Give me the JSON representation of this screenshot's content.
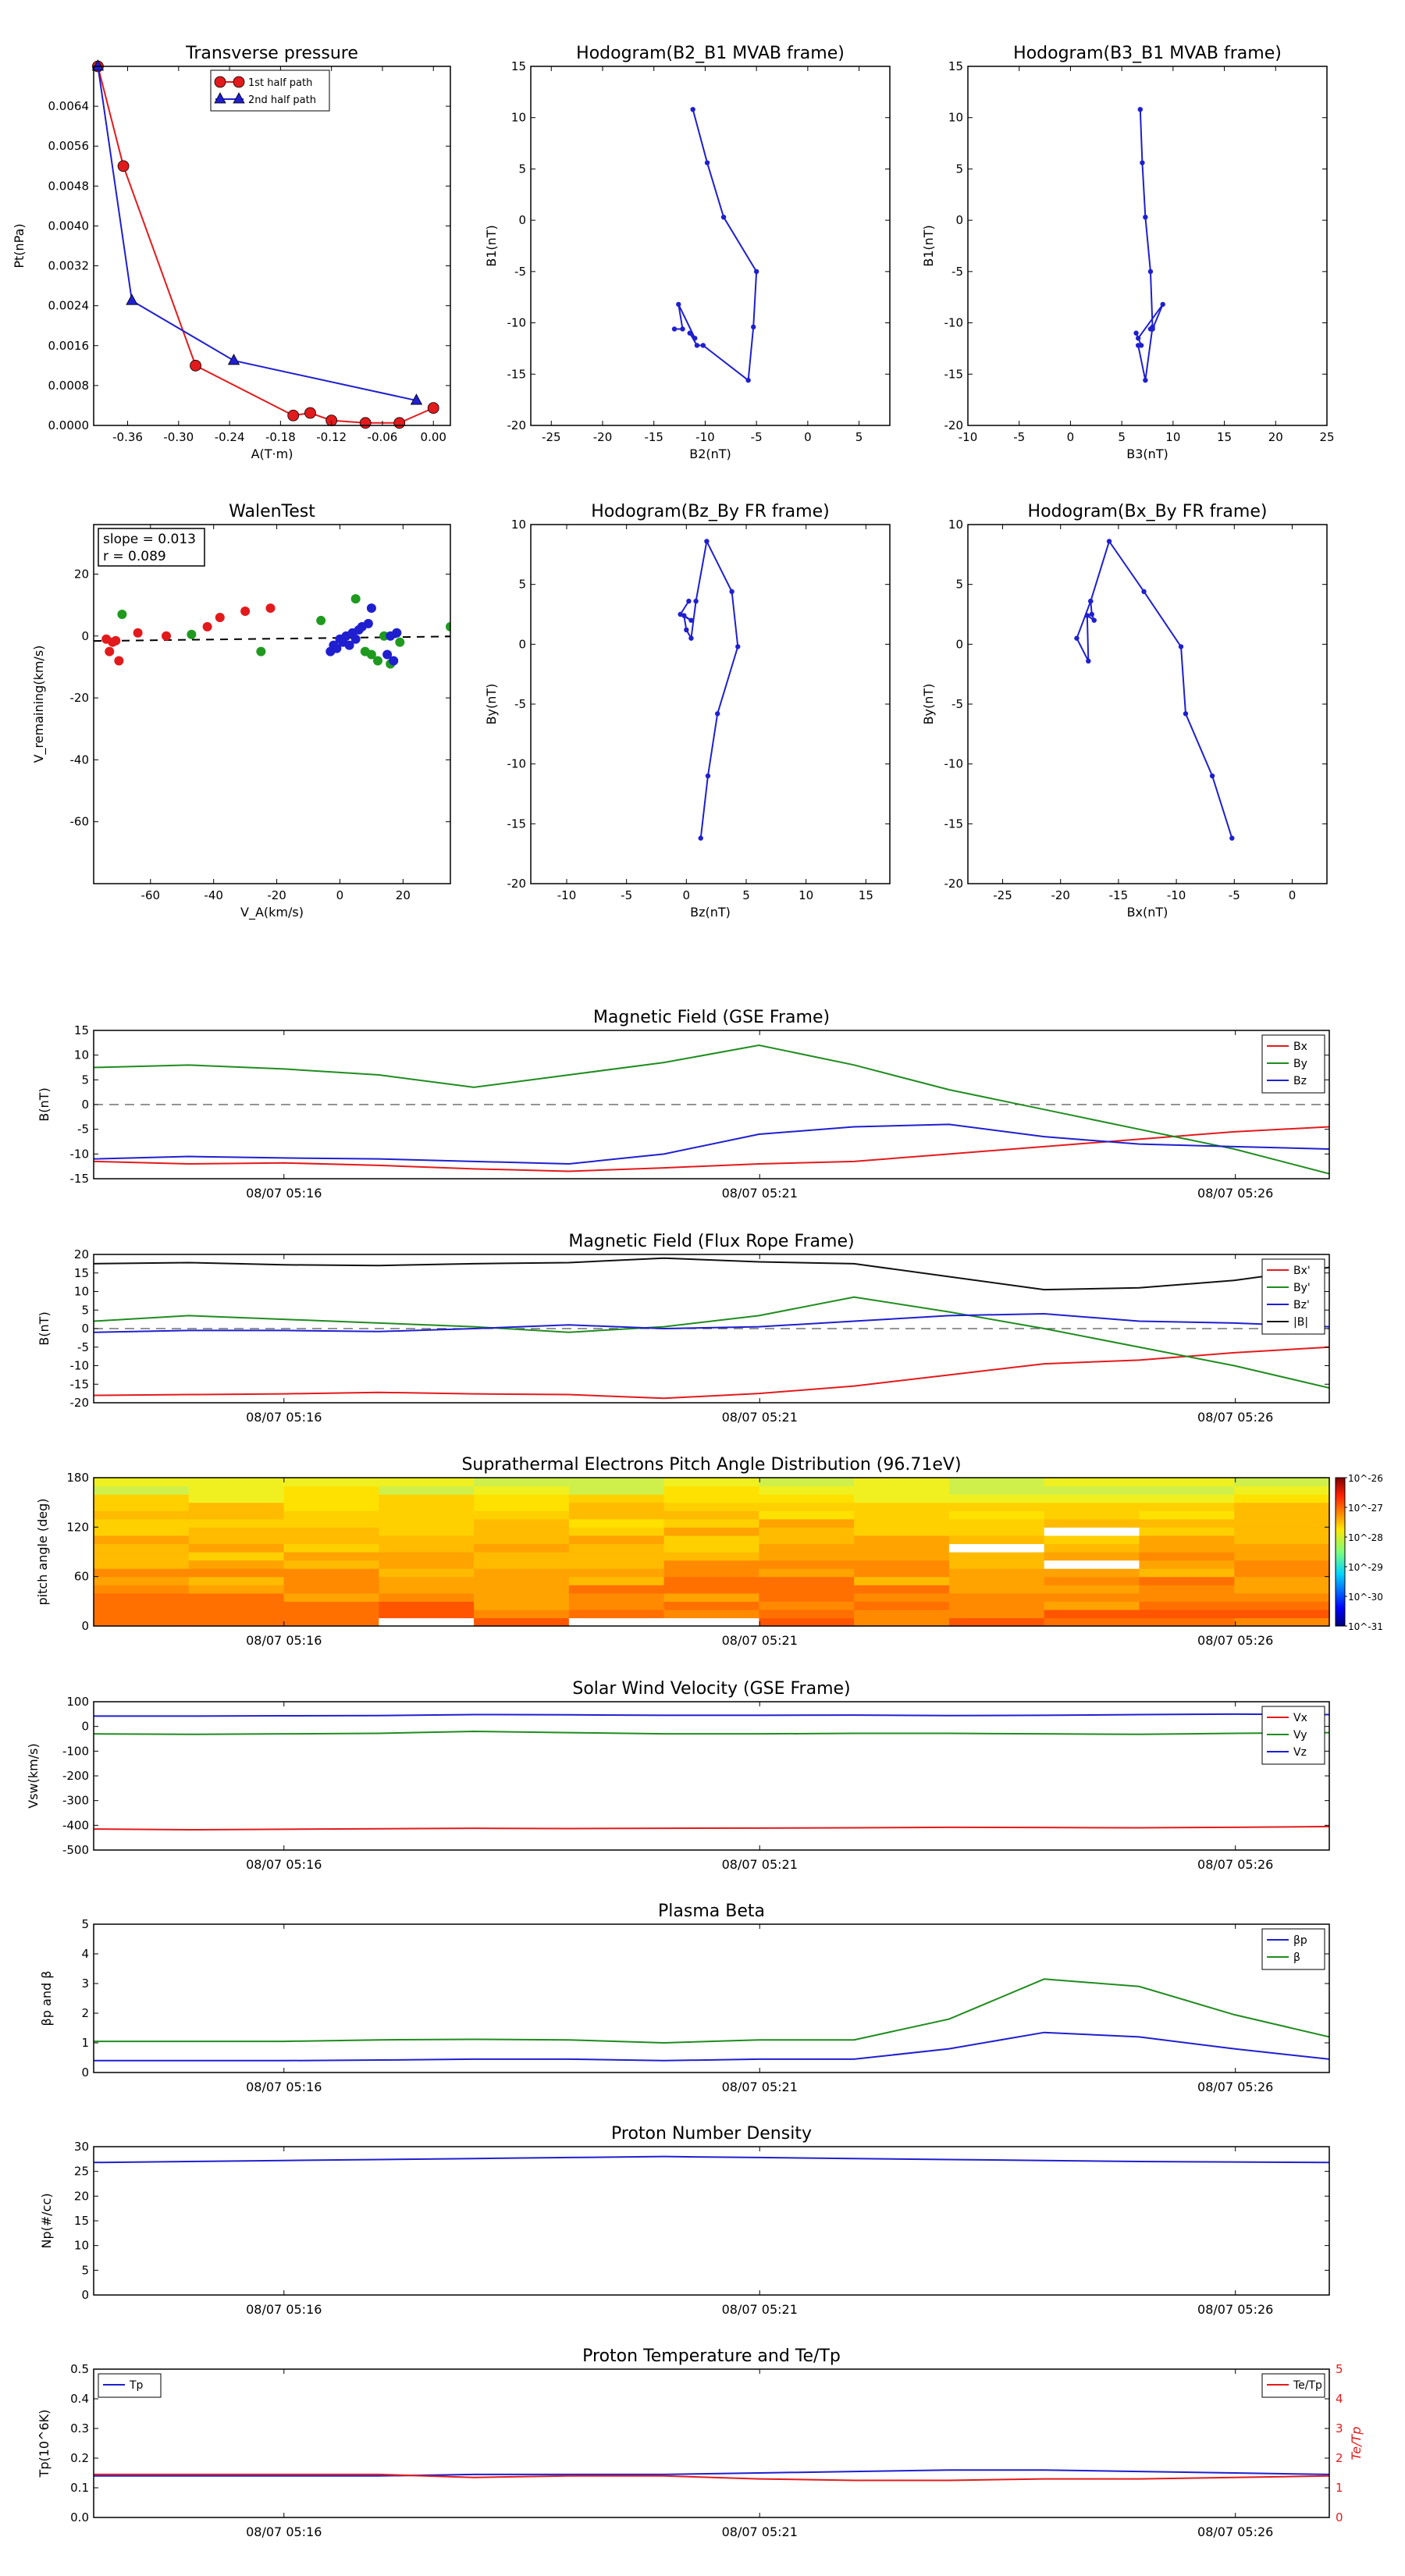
{
  "chart_data": [
    {
      "id": "tp",
      "type": "scatter",
      "title": "Transverse pressure",
      "xlabel": "A(T·m)",
      "ylabel": "Pt(nPa)",
      "xlim": [
        -0.4,
        0.02
      ],
      "ylim": [
        0,
        0.0072
      ],
      "xticks": [
        -0.36,
        -0.3,
        -0.24,
        -0.18,
        -0.12,
        -0.06,
        0.0
      ],
      "xtick_labels": [
        "-0.36",
        "-0.30",
        "-0.24",
        "-0.18",
        "-0.12",
        "-0.06",
        "0.00"
      ],
      "yticks": [
        0,
        0.0008,
        0.0016,
        0.0024,
        0.0032,
        0.004,
        0.0048,
        0.0056,
        0.0064
      ],
      "ytick_labels": [
        "0.0000",
        "0.0008",
        "0.0016",
        "0.0024",
        "0.0032",
        "0.0040",
        "0.0048",
        "0.0056",
        "0.0064"
      ],
      "legend_position": "top-center",
      "series": [
        {
          "name": "1st half path",
          "color": "#e31a1c",
          "marker": "circle",
          "x": [
            -0.395,
            -0.365,
            -0.28,
            -0.165,
            -0.145,
            -0.12,
            -0.08,
            -0.04,
            0.0
          ],
          "y": [
            0.0072,
            0.0052,
            0.0012,
            0.0002,
            0.00025,
            0.0001,
            5e-05,
            5e-05,
            0.00035
          ]
        },
        {
          "name": "2nd half path",
          "color": "#1f1fd0",
          "marker": "triangle",
          "x": [
            -0.395,
            -0.355,
            -0.235,
            -0.02
          ],
          "y": [
            0.0072,
            0.0025,
            0.0013,
            0.0005
          ]
        }
      ]
    },
    {
      "id": "hodo_b2b1",
      "type": "line",
      "title": "Hodogram(B2_B1 MVAB frame)",
      "xlabel": "B2(nT)",
      "ylabel": "B1(nT)",
      "xlim": [
        -27,
        8
      ],
      "ylim": [
        -20,
        15
      ],
      "xticks": [
        -25,
        -20,
        -15,
        -10,
        -5,
        0,
        5
      ],
      "yticks": [
        -20,
        -15,
        -10,
        -5,
        0,
        5,
        10,
        15
      ],
      "series": [
        {
          "color": "#1f1fd0",
          "x": [
            -11.2,
            -9.8,
            -8.2,
            -5.0,
            -5.3,
            -5.8,
            -10.2,
            -10.8,
            -11.5,
            -11.0,
            -12.6,
            -12.2,
            -13.0
          ],
          "y": [
            10.8,
            5.6,
            0.3,
            -5.0,
            -10.4,
            -15.6,
            -12.2,
            -12.2,
            -11.0,
            -11.5,
            -8.2,
            -10.6,
            -10.6
          ]
        }
      ]
    },
    {
      "id": "hodo_b3b1",
      "type": "line",
      "title": "Hodogram(B3_B1 MVAB frame)",
      "xlabel": "B3(nT)",
      "ylabel": "B1(nT)",
      "xlim": [
        -10,
        25
      ],
      "ylim": [
        -20,
        15
      ],
      "xticks": [
        -10,
        -5,
        0,
        5,
        10,
        15,
        20,
        25
      ],
      "yticks": [
        -20,
        -15,
        -10,
        -5,
        0,
        5,
        10,
        15
      ],
      "series": [
        {
          "color": "#1f1fd0",
          "x": [
            6.8,
            7.0,
            7.3,
            7.8,
            8.0,
            7.3,
            6.6,
            6.9,
            6.4,
            6.6,
            9.0,
            8.0,
            7.8
          ],
          "y": [
            10.8,
            5.6,
            0.3,
            -5.0,
            -10.4,
            -15.6,
            -12.2,
            -12.2,
            -11.0,
            -11.5,
            -8.2,
            -10.6,
            -10.6
          ]
        }
      ]
    },
    {
      "id": "walen",
      "type": "scatter",
      "title": "WalenTest",
      "xlabel": "V_A(km/s)",
      "ylabel": "V_remaining(km/s)",
      "xlim": [
        -78,
        35
      ],
      "ylim": [
        -80,
        36
      ],
      "xticks": [
        -60,
        -40,
        -20,
        0,
        20
      ],
      "yticks": [
        -60,
        -40,
        -20,
        0,
        20
      ],
      "annotation": [
        "slope = 0.013",
        "r = 0.089"
      ],
      "fit": {
        "slope": 0.013,
        "intercept": -0.6
      },
      "series": [
        {
          "color": "#e31a1c",
          "x": [
            -74,
            -72,
            -71,
            -73,
            -70,
            -64,
            -55,
            -42,
            -38,
            -30,
            -22
          ],
          "y": [
            -1,
            -2,
            -1.5,
            -5,
            -8,
            1,
            0,
            3,
            6,
            8,
            9
          ]
        },
        {
          "color": "#1f9a1f",
          "x": [
            -69,
            -47,
            -25,
            -6,
            5,
            8,
            10,
            12,
            14,
            16,
            18,
            19,
            35
          ],
          "y": [
            7,
            0.5,
            -5,
            5,
            12,
            -5,
            -6,
            -8,
            0,
            -9,
            1,
            -2,
            3
          ]
        },
        {
          "color": "#1f1fd0",
          "x": [
            -3,
            -2,
            -1,
            0,
            1,
            2,
            3,
            4,
            5,
            6,
            7,
            9,
            10,
            15,
            16,
            17,
            18
          ],
          "y": [
            -5,
            -3,
            -4,
            -1,
            -2,
            0,
            -3,
            1,
            -1,
            2,
            3,
            4,
            9,
            -6,
            0,
            -8,
            1
          ]
        }
      ]
    },
    {
      "id": "hodo_bzby",
      "type": "line",
      "title": "Hodogram(Bz_By FR frame)",
      "xlabel": "Bz(nT)",
      "ylabel": "By(nT)",
      "xlim": [
        -13,
        17
      ],
      "ylim": [
        -20,
        10
      ],
      "xticks": [
        -10,
        -5,
        0,
        5,
        10,
        15
      ],
      "yticks": [
        -20,
        -15,
        -10,
        -5,
        0,
        5,
        10
      ],
      "series": [
        {
          "color": "#1f1fd0",
          "x": [
            1.2,
            1.8,
            2.6,
            4.3,
            3.8,
            1.7,
            0.8,
            0.4,
            0.0,
            -0.2,
            0.4,
            -0.5,
            0.2
          ],
          "y": [
            -16.2,
            -11.0,
            -5.8,
            -0.2,
            4.4,
            8.6,
            3.6,
            0.5,
            1.2,
            2.4,
            2.0,
            2.5,
            3.6
          ]
        }
      ]
    },
    {
      "id": "hodo_bxby",
      "type": "line",
      "title": "Hodogram(Bx_By FR frame)",
      "xlabel": "Bx(nT)",
      "ylabel": "By(nT)",
      "xlim": [
        -28,
        3
      ],
      "ylim": [
        -20,
        10
      ],
      "xticks": [
        -25,
        -20,
        -15,
        -10,
        -5,
        0
      ],
      "yticks": [
        -20,
        -15,
        -10,
        -5,
        0,
        5,
        10
      ],
      "series": [
        {
          "color": "#1f1fd0",
          "x": [
            -5.2,
            -6.9,
            -9.2,
            -9.6,
            -12.8,
            -15.8,
            -17.4,
            -18.6,
            -17.6,
            -17.7,
            -17.1,
            -17.3,
            -17.4
          ],
          "y": [
            -16.2,
            -11.0,
            -5.8,
            -0.2,
            4.4,
            8.6,
            3.6,
            0.5,
            -1.4,
            2.4,
            2.0,
            2.5,
            3.6
          ]
        }
      ]
    },
    {
      "id": "mag_gse",
      "type": "line",
      "title": "Magnetic Field (GSE Frame)",
      "ylabel": "B(nT)",
      "ylim": [
        -15,
        15
      ],
      "yticks": [
        -15,
        -10,
        -5,
        0,
        5,
        10,
        15
      ],
      "hline": 0,
      "legend_position": "top-right",
      "series": [
        {
          "name": "Bx",
          "color": "#e31a1c",
          "y": [
            -11.5,
            -12.0,
            -11.8,
            -12.3,
            -13.0,
            -13.5,
            -12.8,
            -12.0,
            -11.5,
            -10.0,
            -8.5,
            -7.0,
            -5.5,
            -4.5
          ]
        },
        {
          "name": "By",
          "color": "#1f8c1f",
          "y": [
            7.5,
            8.0,
            7.2,
            6.0,
            3.5,
            6.0,
            8.5,
            12.0,
            8.0,
            3.0,
            -1.0,
            -5.0,
            -9.0,
            -14.0
          ]
        },
        {
          "name": "Bz",
          "color": "#1f1fd0",
          "y": [
            -11.0,
            -10.5,
            -10.8,
            -11.0,
            -11.5,
            -12.0,
            -10.0,
            -6.0,
            -4.5,
            -4.0,
            -6.5,
            -8.0,
            -8.5,
            -9.0
          ]
        }
      ]
    },
    {
      "id": "mag_fr",
      "type": "line",
      "title": "Magnetic Field (Flux Rope Frame)",
      "ylabel": "B(nT)",
      "ylim": [
        -20,
        20
      ],
      "yticks": [
        -20,
        -15,
        -10,
        -5,
        0,
        5,
        10,
        15,
        20
      ],
      "hline": 0,
      "legend_position": "top-right",
      "series": [
        {
          "name": "Bx'",
          "color": "#e31a1c",
          "y": [
            -18.0,
            -17.8,
            -17.6,
            -17.2,
            -17.6,
            -17.8,
            -18.8,
            -17.5,
            -15.5,
            -12.5,
            -9.5,
            -8.5,
            -6.5,
            -5.0
          ]
        },
        {
          "name": "By'",
          "color": "#1f8c1f",
          "y": [
            2.0,
            3.5,
            2.5,
            1.5,
            0.5,
            -1.0,
            0.5,
            3.5,
            8.5,
            4.5,
            0.0,
            -5.0,
            -10.0,
            -16.0
          ]
        },
        {
          "name": "Bz'",
          "color": "#1f1fd0",
          "y": [
            -1.0,
            -0.5,
            -0.5,
            -0.8,
            0.0,
            1.0,
            0.0,
            0.5,
            2.0,
            3.5,
            4.0,
            2.0,
            1.5,
            0.5
          ]
        },
        {
          "name": "|B|",
          "color": "#111111",
          "y": [
            17.5,
            17.8,
            17.2,
            17.0,
            17.5,
            17.8,
            19.0,
            18.0,
            17.5,
            14.0,
            10.5,
            11.0,
            13.0,
            16.5
          ]
        }
      ]
    },
    {
      "id": "pad",
      "type": "heatmap",
      "title": "Suprathermal Electrons Pitch Angle Distribution (96.71eV)",
      "ylabel": "pitch angle (deg)",
      "ylim": [
        0,
        180
      ],
      "yticks": [
        0,
        60,
        120,
        180
      ],
      "colorbar_ticks": [
        "10^-26",
        "10^-27",
        "10^-28",
        "10^-29",
        "10^-30",
        "10^-31"
      ],
      "columns": 13,
      "rows": 18
    },
    {
      "id": "vsw",
      "type": "line",
      "title": "Solar Wind Velocity (GSE Frame)",
      "ylabel": "Vsw(km/s)",
      "ylim": [
        -500,
        100
      ],
      "yticks": [
        -500,
        -400,
        -300,
        -200,
        -100,
        0,
        100
      ],
      "legend_position": "top-right",
      "series": [
        {
          "name": "Vx",
          "color": "#e31a1c",
          "y": [
            -415,
            -418,
            -416,
            -414,
            -412,
            -413,
            -412,
            -411,
            -410,
            -408,
            -409,
            -410,
            -408,
            -405
          ]
        },
        {
          "name": "Vy",
          "color": "#1f8c1f",
          "y": [
            -30,
            -32,
            -30,
            -28,
            -20,
            -25,
            -30,
            -30,
            -28,
            -28,
            -30,
            -32,
            -28,
            -25
          ]
        },
        {
          "name": "Vz",
          "color": "#1f1fd0",
          "y": [
            42,
            42,
            43,
            44,
            48,
            47,
            45,
            45,
            46,
            44,
            45,
            48,
            50,
            48
          ]
        }
      ]
    },
    {
      "id": "beta",
      "type": "line",
      "title": "Plasma Beta",
      "ylabel": "βp and β",
      "ylim": [
        0,
        5
      ],
      "yticks": [
        0,
        1,
        2,
        3,
        4,
        5
      ],
      "legend_position": "top-right",
      "series": [
        {
          "name": "βp",
          "color": "#1f1fd0",
          "y": [
            0.4,
            0.4,
            0.4,
            0.42,
            0.45,
            0.45,
            0.4,
            0.45,
            0.45,
            0.8,
            1.35,
            1.2,
            0.8,
            0.45
          ]
        },
        {
          "name": "β",
          "color": "#1f8c1f",
          "y": [
            1.05,
            1.05,
            1.05,
            1.1,
            1.12,
            1.1,
            1.0,
            1.1,
            1.1,
            1.8,
            3.15,
            2.9,
            1.95,
            1.2
          ]
        }
      ]
    },
    {
      "id": "np",
      "type": "line",
      "title": "Proton Number Density",
      "ylabel": "Np(#/cc)",
      "ylim": [
        0,
        30
      ],
      "yticks": [
        0,
        5,
        10,
        15,
        20,
        25,
        30
      ],
      "series": [
        {
          "color": "#1f1fd0",
          "y": [
            26.8,
            27.0,
            27.2,
            27.4,
            27.6,
            27.8,
            28.0,
            27.8,
            27.6,
            27.4,
            27.2,
            27.0,
            26.9,
            26.8
          ]
        }
      ]
    },
    {
      "id": "temp",
      "type": "line",
      "title": "Proton Temperature and Te/Tp",
      "ylabel": "Tp(10^6K)",
      "y2label": "Te/Tp",
      "ylim": [
        0,
        0.5
      ],
      "yticks": [
        0,
        0.1,
        0.2,
        0.3,
        0.4,
        0.5
      ],
      "ytick_labels": [
        "0.0",
        "0.1",
        "0.2",
        "0.3",
        "0.4",
        "0.5"
      ],
      "y2lim": [
        0,
        5
      ],
      "y2ticks": [
        0,
        1,
        2,
        3,
        4,
        5
      ],
      "series": [
        {
          "name": "Tp",
          "color": "#1f1fd0",
          "axis": "left",
          "y": [
            0.14,
            0.14,
            0.14,
            0.14,
            0.145,
            0.145,
            0.145,
            0.15,
            0.155,
            0.16,
            0.16,
            0.155,
            0.15,
            0.145
          ]
        },
        {
          "name": "Te/Tp",
          "color": "#e31a1c",
          "axis": "right",
          "y": [
            1.45,
            1.45,
            1.45,
            1.45,
            1.35,
            1.4,
            1.4,
            1.3,
            1.25,
            1.25,
            1.3,
            1.3,
            1.35,
            1.4
          ]
        }
      ]
    }
  ],
  "time_axis": {
    "tick_labels": [
      "08/07 05:16",
      "08/07 05:21",
      "08/07 05:26"
    ]
  }
}
